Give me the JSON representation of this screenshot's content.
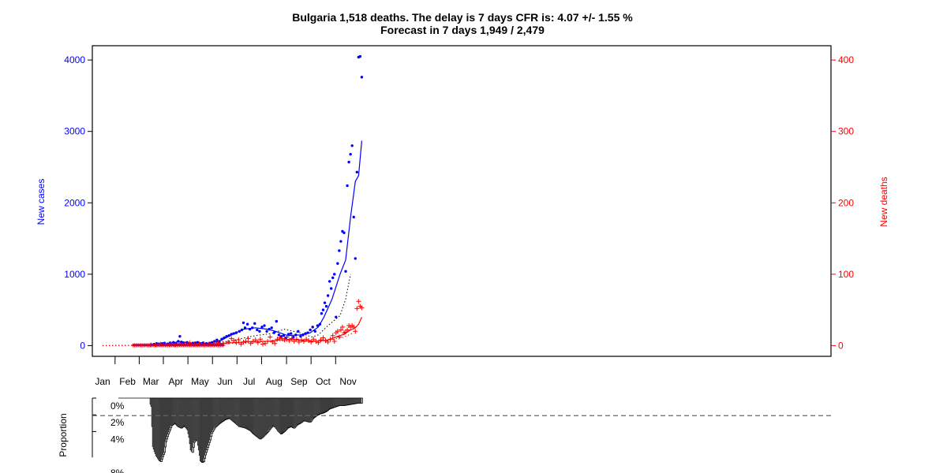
{
  "chart_data": {
    "type": "scatter",
    "title": "Bulgaria 1,518 deaths. The delay is 7 days CFR is: 4.07 +/- 1.55 %",
    "subtitle": "Forecast in 7 days 1,949 / 2,479",
    "ylabel": "New cases",
    "y2label": "New deaths",
    "ylim": [
      -150,
      4200
    ],
    "y2lim": [
      -15,
      420
    ],
    "yticks": [
      "0",
      "1000",
      "2000",
      "3000",
      "4000"
    ],
    "y2ticks": [
      "0",
      "100",
      "200",
      "300",
      "400"
    ],
    "month_labels": [
      "Jan",
      "Feb",
      "Mar",
      "Apr",
      "May",
      "Jun",
      "Jul",
      "Aug",
      "Sep",
      "Oct",
      "Nov"
    ],
    "colors": {
      "cases": "#0000ff",
      "deaths": "#ff0000",
      "average": "#000000",
      "bars": "#c8c8c8"
    },
    "series": [
      {
        "marker": "point",
        "color": "#0000ff",
        "axis": "left",
        "points": [
          [
            60,
            15
          ],
          [
            64,
            20
          ],
          [
            67,
            30
          ],
          [
            70,
            25
          ],
          [
            74,
            30
          ],
          [
            77,
            35
          ],
          [
            81,
            25
          ],
          [
            84,
            40
          ],
          [
            88,
            45
          ],
          [
            91,
            35
          ],
          [
            94,
            60
          ],
          [
            96,
            130
          ],
          [
            98,
            50
          ],
          [
            101,
            40
          ],
          [
            105,
            45
          ],
          [
            108,
            30
          ],
          [
            112,
            35
          ],
          [
            115,
            40
          ],
          [
            118,
            45
          ],
          [
            122,
            30
          ],
          [
            125,
            40
          ],
          [
            129,
            30
          ],
          [
            133,
            35
          ],
          [
            136,
            45
          ],
          [
            139,
            60
          ],
          [
            142,
            80
          ],
          [
            145,
            60
          ],
          [
            148,
            90
          ],
          [
            151,
            110
          ],
          [
            154,
            130
          ],
          [
            157,
            140
          ],
          [
            160,
            160
          ],
          [
            163,
            170
          ],
          [
            166,
            180
          ],
          [
            170,
            200
          ],
          [
            173,
            220
          ],
          [
            175,
            320
          ],
          [
            177,
            250
          ],
          [
            180,
            300
          ],
          [
            183,
            230
          ],
          [
            186,
            250
          ],
          [
            189,
            310
          ],
          [
            192,
            220
          ],
          [
            195,
            200
          ],
          [
            198,
            260
          ],
          [
            201,
            280
          ],
          [
            204,
            200
          ],
          [
            207,
            230
          ],
          [
            210,
            250
          ],
          [
            213,
            180
          ],
          [
            216,
            340
          ],
          [
            219,
            150
          ],
          [
            222,
            130
          ],
          [
            225,
            140
          ],
          [
            228,
            110
          ],
          [
            231,
            160
          ],
          [
            234,
            170
          ],
          [
            237,
            120
          ],
          [
            240,
            150
          ],
          [
            243,
            200
          ],
          [
            246,
            130
          ],
          [
            249,
            150
          ],
          [
            252,
            170
          ],
          [
            255,
            180
          ],
          [
            258,
            220
          ],
          [
            261,
            260
          ],
          [
            264,
            200
          ],
          [
            267,
            280
          ],
          [
            270,
            300
          ],
          [
            272,
            450
          ],
          [
            274,
            500
          ],
          [
            276,
            600
          ],
          [
            278,
            550
          ],
          [
            280,
            700
          ],
          [
            282,
            900
          ],
          [
            284,
            800
          ],
          [
            286,
            950
          ],
          [
            288,
            1000
          ],
          [
            290,
            400
          ],
          [
            292,
            1150
          ],
          [
            294,
            1330
          ],
          [
            296,
            1460
          ],
          [
            298,
            1600
          ],
          [
            300,
            1580
          ],
          [
            302,
            1040
          ],
          [
            304,
            2240
          ],
          [
            306,
            2570
          ],
          [
            308,
            2680
          ],
          [
            310,
            2800
          ],
          [
            312,
            1800
          ],
          [
            314,
            1220
          ],
          [
            316,
            2430
          ],
          [
            318,
            4040
          ],
          [
            320,
            4050
          ],
          [
            322,
            3760
          ]
        ]
      },
      {
        "marker": "line",
        "color": "#0000ff",
        "axis": "left",
        "points": [
          [
            60,
            15
          ],
          [
            80,
            30
          ],
          [
            96,
            55
          ],
          [
            110,
            38
          ],
          [
            130,
            32
          ],
          [
            145,
            60
          ],
          [
            160,
            150
          ],
          [
            175,
            230
          ],
          [
            190,
            250
          ],
          [
            205,
            230
          ],
          [
            215,
            200
          ],
          [
            230,
            140
          ],
          [
            245,
            150
          ],
          [
            258,
            180
          ],
          [
            268,
            260
          ],
          [
            275,
            400
          ],
          [
            285,
            650
          ],
          [
            295,
            1000
          ],
          [
            302,
            1200
          ],
          [
            308,
            1800
          ],
          [
            314,
            2300
          ],
          [
            318,
            2380
          ],
          [
            322,
            2870
          ]
        ]
      },
      {
        "marker": "dotted",
        "color": "#000000",
        "axis": "left",
        "points": [
          [
            0,
            0
          ],
          [
            60,
            5
          ],
          [
            96,
            25
          ],
          [
            130,
            20
          ],
          [
            160,
            70
          ],
          [
            190,
            140
          ],
          [
            210,
            170
          ],
          [
            226,
            230
          ],
          [
            245,
            180
          ],
          [
            260,
            120
          ],
          [
            268,
            150
          ],
          [
            280,
            280
          ],
          [
            295,
            420
          ],
          [
            302,
            650
          ],
          [
            308,
            1000
          ]
        ]
      },
      {
        "marker": "plus",
        "color": "#ff0000",
        "axis": "right",
        "points": [
          [
            60,
            1
          ],
          [
            66,
            1
          ],
          [
            72,
            2
          ],
          [
            78,
            1
          ],
          [
            84,
            2
          ],
          [
            90,
            1
          ],
          [
            96,
            3
          ],
          [
            102,
            2
          ],
          [
            108,
            4
          ],
          [
            114,
            2
          ],
          [
            120,
            3
          ],
          [
            126,
            1
          ],
          [
            132,
            2
          ],
          [
            138,
            3
          ],
          [
            144,
            4
          ],
          [
            150,
            3
          ],
          [
            156,
            5
          ],
          [
            160,
            10
          ],
          [
            163,
            7
          ],
          [
            166,
            4
          ],
          [
            169,
            8
          ],
          [
            172,
            2
          ],
          [
            175,
            5
          ],
          [
            178,
            6
          ],
          [
            181,
            10
          ],
          [
            184,
            3
          ],
          [
            187,
            6
          ],
          [
            190,
            8
          ],
          [
            193,
            4
          ],
          [
            196,
            9
          ],
          [
            199,
            2
          ],
          [
            202,
            3
          ],
          [
            205,
            6
          ],
          [
            208,
            12
          ],
          [
            211,
            5
          ],
          [
            214,
            3
          ],
          [
            217,
            9
          ],
          [
            220,
            11
          ],
          [
            223,
            10
          ],
          [
            226,
            8
          ],
          [
            229,
            12
          ],
          [
            232,
            7
          ],
          [
            235,
            10
          ],
          [
            238,
            6
          ],
          [
            241,
            9
          ],
          [
            244,
            5
          ],
          [
            247,
            8
          ],
          [
            250,
            6
          ],
          [
            253,
            9
          ],
          [
            256,
            7
          ],
          [
            259,
            5
          ],
          [
            262,
            9
          ],
          [
            265,
            6
          ],
          [
            268,
            4
          ],
          [
            271,
            8
          ],
          [
            274,
            11
          ],
          [
            277,
            7
          ],
          [
            280,
            5
          ],
          [
            283,
            9
          ],
          [
            286,
            14
          ],
          [
            288,
            6
          ],
          [
            290,
            18
          ],
          [
            292,
            20
          ],
          [
            294,
            12
          ],
          [
            296,
            22
          ],
          [
            298,
            26
          ],
          [
            300,
            18
          ],
          [
            302,
            19
          ],
          [
            304,
            22
          ],
          [
            306,
            28
          ],
          [
            308,
            26
          ],
          [
            310,
            28
          ],
          [
            312,
            26
          ],
          [
            314,
            20
          ],
          [
            316,
            52
          ],
          [
            318,
            62
          ],
          [
            320,
            55
          ],
          [
            322,
            53
          ]
        ]
      },
      {
        "marker": "line",
        "color": "#ff0000",
        "axis": "right",
        "points": [
          [
            60,
            1
          ],
          [
            96,
            2
          ],
          [
            130,
            2
          ],
          [
            160,
            4
          ],
          [
            175,
            5
          ],
          [
            190,
            6
          ],
          [
            205,
            6
          ],
          [
            220,
            8
          ],
          [
            235,
            9
          ],
          [
            250,
            7
          ],
          [
            265,
            6
          ],
          [
            280,
            8
          ],
          [
            290,
            12
          ],
          [
            300,
            16
          ],
          [
            308,
            22
          ],
          [
            314,
            25
          ],
          [
            318,
            30
          ],
          [
            322,
            40
          ]
        ]
      },
      {
        "marker": "dotted",
        "color": "#ff0000",
        "axis": "right",
        "points": [
          [
            0,
            0
          ],
          [
            60,
            0.5
          ],
          [
            130,
            1.5
          ],
          [
            160,
            3
          ],
          [
            190,
            5
          ],
          [
            220,
            7
          ],
          [
            250,
            6
          ],
          [
            280,
            7
          ],
          [
            300,
            12
          ],
          [
            310,
            17
          ]
        ]
      }
    ],
    "bars": {
      "ylabel": "Proportion",
      "yticks": [
        "0%",
        "2%",
        "4%",
        "8%"
      ],
      "reference_percent": 2.1,
      "start_day": 60,
      "end_day": 322,
      "series_shape": [
        [
          58,
          0.2
        ],
        [
          61,
          1.0
        ],
        [
          63,
          5.8
        ],
        [
          65,
          6.4
        ],
        [
          67,
          6.9
        ],
        [
          69,
          7.2
        ],
        [
          71,
          7.5
        ],
        [
          73,
          7.6
        ],
        [
          75,
          7.0
        ],
        [
          77,
          6.5
        ],
        [
          79,
          5.2
        ],
        [
          82,
          4.3
        ],
        [
          86,
          3.3
        ],
        [
          90,
          3.0
        ],
        [
          94,
          3.4
        ],
        [
          98,
          3.6
        ],
        [
          102,
          3.3
        ],
        [
          106,
          3.8
        ],
        [
          108,
          4.7
        ],
        [
          110,
          6.2
        ],
        [
          112,
          6.5
        ],
        [
          114,
          5.3
        ],
        [
          116,
          5.0
        ],
        [
          118,
          5.1
        ],
        [
          120,
          6.2
        ],
        [
          122,
          7.5
        ],
        [
          124,
          7.7
        ],
        [
          126,
          7.6
        ],
        [
          128,
          6.8
        ],
        [
          130,
          6.2
        ],
        [
          132,
          5.6
        ],
        [
          134,
          5.0
        ],
        [
          136,
          4.2
        ],
        [
          140,
          3.5
        ],
        [
          146,
          3.0
        ],
        [
          152,
          2.6
        ],
        [
          158,
          2.4
        ],
        [
          164,
          2.9
        ],
        [
          170,
          3.4
        ],
        [
          178,
          3.6
        ],
        [
          184,
          3.9
        ],
        [
          188,
          4.3
        ],
        [
          192,
          4.6
        ],
        [
          196,
          4.9
        ],
        [
          199,
          4.7
        ],
        [
          202,
          4.4
        ],
        [
          206,
          4.0
        ],
        [
          209,
          3.6
        ],
        [
          212,
          3.3
        ],
        [
          215,
          3.5
        ],
        [
          218,
          3.9
        ],
        [
          222,
          4.3
        ],
        [
          226,
          4.0
        ],
        [
          230,
          3.6
        ],
        [
          234,
          3.4
        ],
        [
          238,
          3.6
        ],
        [
          242,
          3.2
        ],
        [
          246,
          3.0
        ],
        [
          250,
          2.7
        ],
        [
          254,
          2.8
        ],
        [
          258,
          2.9
        ],
        [
          262,
          2.4
        ],
        [
          266,
          2.1
        ],
        [
          270,
          1.9
        ],
        [
          274,
          1.8
        ],
        [
          278,
          1.6
        ],
        [
          282,
          1.3
        ],
        [
          288,
          1.1
        ],
        [
          294,
          0.9
        ],
        [
          300,
          0.9
        ],
        [
          306,
          0.8
        ],
        [
          312,
          0.7
        ],
        [
          318,
          0.6
        ],
        [
          322,
          0.6
        ]
      ]
    }
  }
}
